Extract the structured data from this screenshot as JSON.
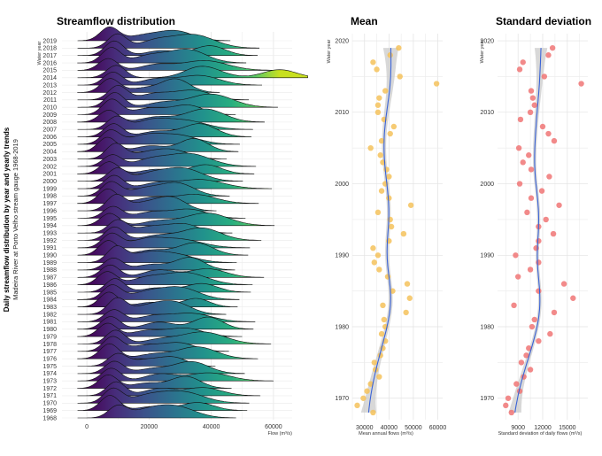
{
  "side_title": "Daily streamflow distribution by year and yearly trends",
  "side_subtitle": "Madeira River at Porto Velho stream gauge 1968-2019",
  "chart_data": [
    {
      "type": "ridgeline",
      "title": "Streamflow distribution",
      "xlabel": "Flow (m³/s)",
      "ylabel": "Water year",
      "xlim": [
        -8000,
        66000
      ],
      "xticks": [
        0,
        20000,
        40000,
        60000
      ],
      "xtick_labels": [
        "0",
        "20000",
        "40000",
        "60000"
      ],
      "years": [
        1968,
        1969,
        1970,
        1971,
        1972,
        1973,
        1974,
        1975,
        1976,
        1977,
        1978,
        1979,
        1980,
        1981,
        1982,
        1983,
        1984,
        1985,
        1986,
        1987,
        1988,
        1989,
        1990,
        1991,
        1992,
        1993,
        1994,
        1995,
        1996,
        1997,
        1998,
        1999,
        2000,
        2001,
        2002,
        2003,
        2004,
        2005,
        2006,
        2007,
        2008,
        2009,
        2010,
        2011,
        2012,
        2013,
        2014,
        2015,
        2016,
        2017,
        2018,
        2019
      ],
      "fill_scale": "viridis",
      "grid": true
    },
    {
      "type": "scatter",
      "title": "Mean",
      "xlabel": "Mean annual flows (m³/s)",
      "ylabel": "Water year",
      "xlim": [
        25000,
        62000
      ],
      "ylim": [
        1967,
        2021
      ],
      "xticks": [
        30000,
        40000,
        50000,
        60000
      ],
      "xtick_labels": [
        "30000",
        "40000",
        "50000",
        "60000"
      ],
      "yticks": [
        1970,
        1980,
        1990,
        2000,
        2010,
        2020
      ],
      "ytick_labels": [
        "1970",
        "1980",
        "1990",
        "2000",
        "2010",
        "2020"
      ],
      "point_color": "#f5c25c",
      "trend": "loess with confidence band",
      "points": [
        [
          1968,
          33500
        ],
        [
          1969,
          27000
        ],
        [
          1970,
          29500
        ],
        [
          1971,
          31000
        ],
        [
          1972,
          32500
        ],
        [
          1973,
          36000
        ],
        [
          1974,
          34500
        ],
        [
          1975,
          34000
        ],
        [
          1976,
          36500
        ],
        [
          1977,
          37500
        ],
        [
          1978,
          38500
        ],
        [
          1979,
          37000
        ],
        [
          1980,
          38500
        ],
        [
          1981,
          38000
        ],
        [
          1982,
          47000
        ],
        [
          1983,
          37500
        ],
        [
          1984,
          48500
        ],
        [
          1985,
          41500
        ],
        [
          1986,
          47500
        ],
        [
          1987,
          39500
        ],
        [
          1988,
          36000
        ],
        [
          1989,
          34000
        ],
        [
          1990,
          35500
        ],
        [
          1991,
          33500
        ],
        [
          1992,
          40000
        ],
        [
          1993,
          46000
        ],
        [
          1994,
          41000
        ],
        [
          1995,
          40500
        ],
        [
          1996,
          35500
        ],
        [
          1997,
          49000
        ],
        [
          1998,
          40000
        ],
        [
          1999,
          37000
        ],
        [
          2000,
          38500
        ],
        [
          2001,
          40000
        ],
        [
          2002,
          39000
        ],
        [
          2003,
          37500
        ],
        [
          2004,
          36500
        ],
        [
          2005,
          32500
        ],
        [
          2006,
          37000
        ],
        [
          2007,
          40500
        ],
        [
          2008,
          42000
        ],
        [
          2009,
          38000
        ],
        [
          2010,
          35500
        ],
        [
          2011,
          35500
        ],
        [
          2012,
          36000
        ],
        [
          2013,
          38500
        ],
        [
          2014,
          59500
        ],
        [
          2015,
          44500
        ],
        [
          2016,
          35000
        ],
        [
          2017,
          33500
        ],
        [
          2018,
          40500
        ],
        [
          2019,
          44000
        ]
      ]
    },
    {
      "type": "scatter",
      "title": "Standard deviation",
      "xlabel": "Standard deviation of daily flows (m³/s)",
      "ylabel": "Water year",
      "xlim": [
        6500,
        17500
      ],
      "ylim": [
        1967,
        2021
      ],
      "xticks": [
        9000,
        12000,
        15000
      ],
      "xtick_labels": [
        "9000",
        "12000",
        "15000"
      ],
      "yticks": [
        1970,
        1980,
        1990,
        2000,
        2010,
        2020
      ],
      "ytick_labels": [
        "1970",
        "1980",
        "1990",
        "2000",
        "2010",
        "2020"
      ],
      "point_color": "#f07575",
      "trend": "loess with confidence band",
      "points": [
        [
          1968,
          8200
        ],
        [
          1969,
          7500
        ],
        [
          1970,
          7800
        ],
        [
          1971,
          9200
        ],
        [
          1972,
          8800
        ],
        [
          1973,
          9700
        ],
        [
          1974,
          10500
        ],
        [
          1975,
          9400
        ],
        [
          1976,
          10000
        ],
        [
          1977,
          10300
        ],
        [
          1978,
          11500
        ],
        [
          1979,
          12900
        ],
        [
          1980,
          10700
        ],
        [
          1981,
          11000
        ],
        [
          1982,
          13400
        ],
        [
          1983,
          8500
        ],
        [
          1984,
          15700
        ],
        [
          1985,
          11500
        ],
        [
          1986,
          14600
        ],
        [
          1987,
          9000
        ],
        [
          1988,
          10500
        ],
        [
          1989,
          11500
        ],
        [
          1990,
          8700
        ],
        [
          1991,
          11200
        ],
        [
          1992,
          11500
        ],
        [
          1993,
          13300
        ],
        [
          1994,
          11500
        ],
        [
          1995,
          12400
        ],
        [
          1996,
          10100
        ],
        [
          1997,
          14000
        ],
        [
          1998,
          10600
        ],
        [
          1999,
          11900
        ],
        [
          2000,
          9200
        ],
        [
          2001,
          12800
        ],
        [
          2002,
          10600
        ],
        [
          2003,
          9600
        ],
        [
          2004,
          10300
        ],
        [
          2005,
          9100
        ],
        [
          2006,
          13400
        ],
        [
          2007,
          12700
        ],
        [
          2008,
          12000
        ],
        [
          2009,
          9300
        ],
        [
          2010,
          10500
        ],
        [
          2011,
          11000
        ],
        [
          2012,
          10800
        ],
        [
          2013,
          10600
        ],
        [
          2014,
          16700
        ],
        [
          2015,
          12200
        ],
        [
          2016,
          9200
        ],
        [
          2017,
          9600
        ],
        [
          2018,
          12700
        ],
        [
          2019,
          13200
        ]
      ]
    }
  ]
}
